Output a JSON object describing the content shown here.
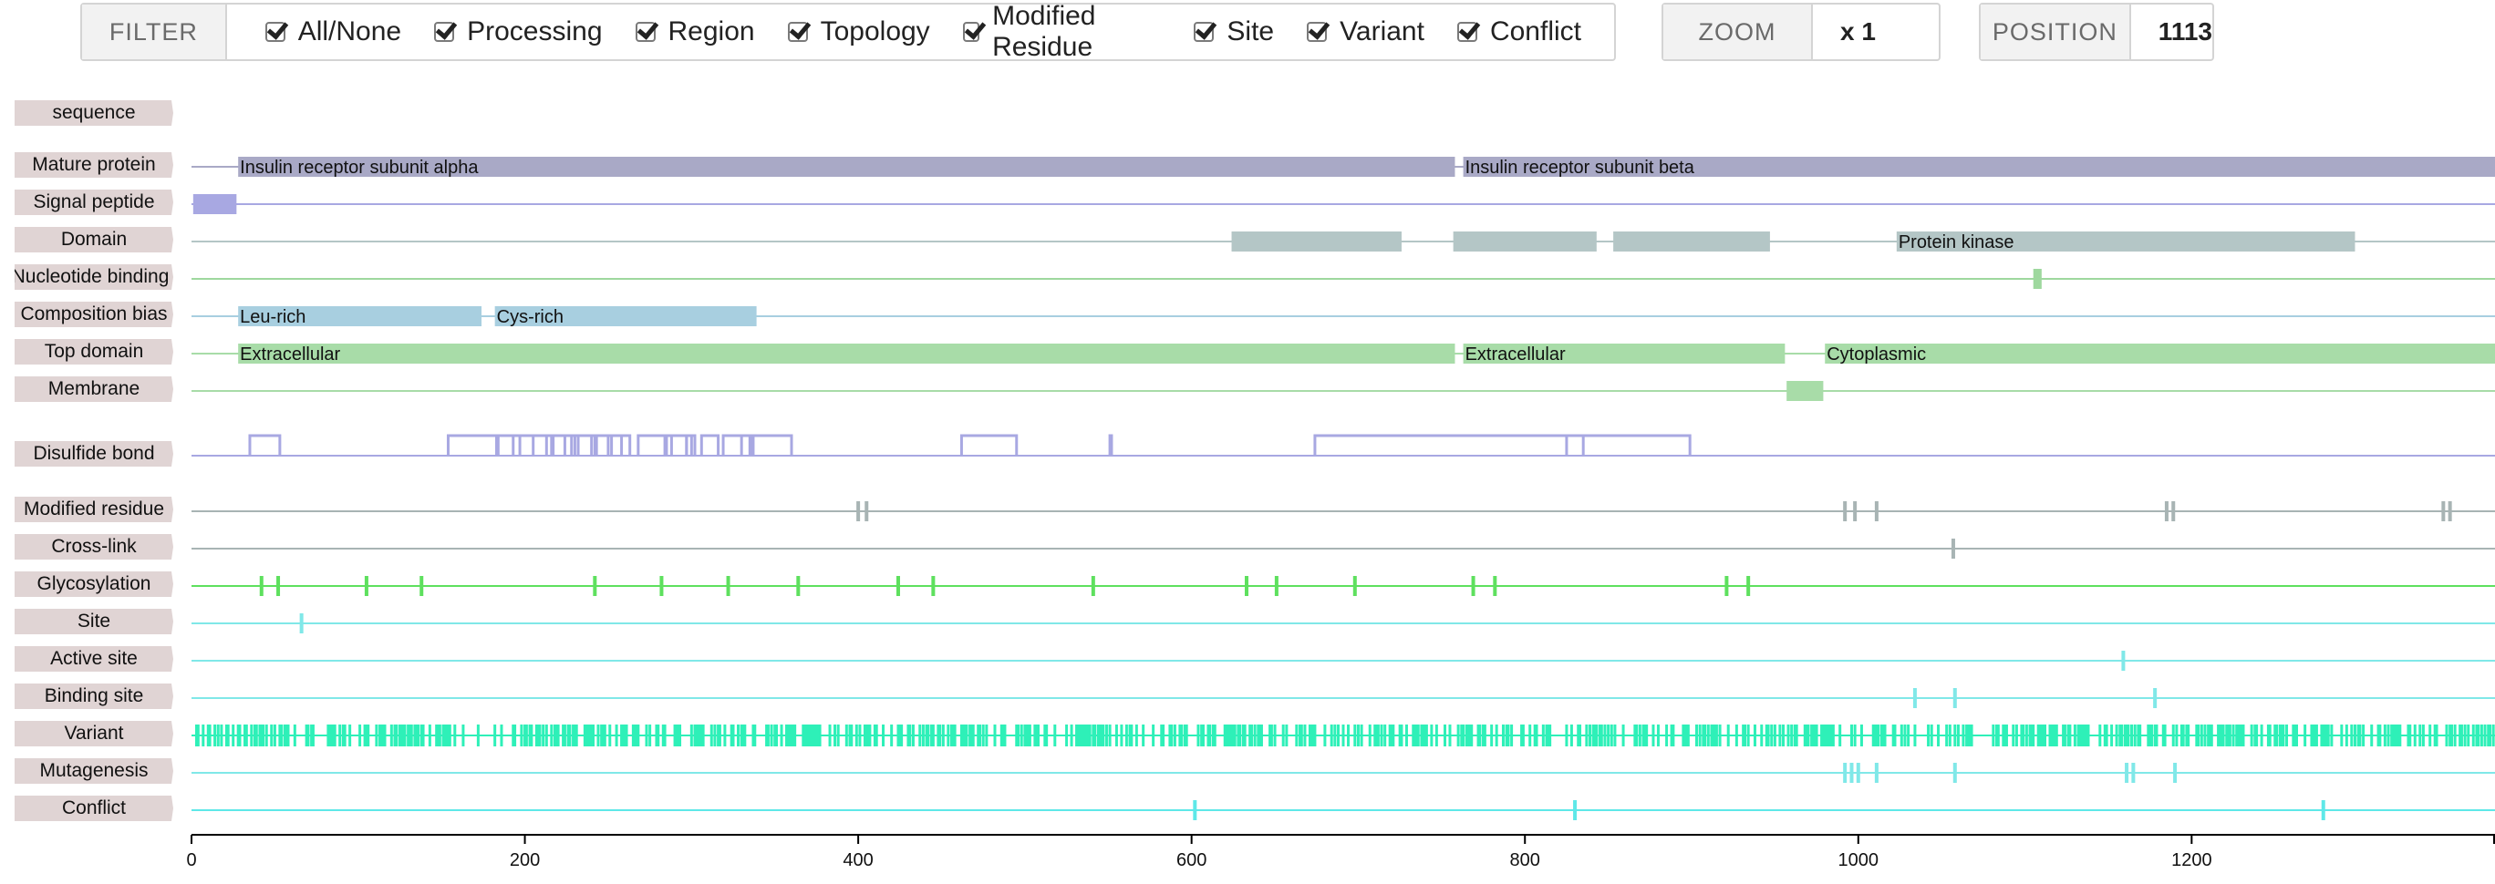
{
  "filter": {
    "title": "FILTER",
    "items": [
      {
        "label": "All/None",
        "checked": true
      },
      {
        "label": "Processing",
        "checked": true
      },
      {
        "label": "Region",
        "checked": true
      },
      {
        "label": "Topology",
        "checked": true
      },
      {
        "label": "Modified Residue",
        "checked": true
      },
      {
        "label": "Site",
        "checked": true
      },
      {
        "label": "Variant",
        "checked": true
      },
      {
        "label": "Conflict",
        "checked": true
      }
    ]
  },
  "zoom": {
    "title": "ZOOM",
    "value": "x 1"
  },
  "position": {
    "title": "POSITION",
    "value": "1113"
  },
  "axis": {
    "min": 0,
    "max": 1382,
    "ticks": [
      0,
      200,
      400,
      600,
      800,
      1000,
      1200
    ]
  },
  "colors": {
    "label_bg": "#e0d4d4",
    "processing": "#a9a9c6",
    "signal": "#a8a8e2",
    "domain": "#b4c6c6",
    "nucleotide": "#9ed89e",
    "region": "#a8cfe0",
    "topology": "#a8dca8",
    "disulfide": "#a8a8e2",
    "modified": "#a8b4b4",
    "glyco": "#5ee05e",
    "site": "#80e8e8",
    "variant": "#2ef0b8",
    "conflict": "#5ee8e8"
  },
  "tracks": [
    {
      "label": "sequence",
      "kind": "label",
      "features": []
    },
    {
      "label": "Mature protein",
      "kind": "bars",
      "color": "processing",
      "features": [
        {
          "start": 28,
          "end": 758,
          "text": "Insulin receptor subunit alpha"
        },
        {
          "start": 763,
          "end": 1382,
          "text": "Insulin receptor subunit beta"
        }
      ]
    },
    {
      "label": "Signal peptide",
      "kind": "bars",
      "color": "signal",
      "features": [
        {
          "start": 1,
          "end": 27,
          "text": ""
        }
      ]
    },
    {
      "label": "Domain",
      "kind": "bars",
      "color": "domain",
      "features": [
        {
          "start": 624,
          "end": 726,
          "text": ""
        },
        {
          "start": 757,
          "end": 843,
          "text": ""
        },
        {
          "start": 853,
          "end": 947,
          "text": ""
        },
        {
          "start": 1023,
          "end": 1298,
          "text": "Protein kinase"
        }
      ]
    },
    {
      "label": "Nucleotide binding",
      "kind": "bars",
      "color": "nucleotide",
      "features": [
        {
          "start": 1105,
          "end": 1110,
          "text": ""
        }
      ]
    },
    {
      "label": "Composition bias",
      "kind": "bars",
      "color": "region",
      "features": [
        {
          "start": 28,
          "end": 174,
          "text": "Leu-rich"
        },
        {
          "start": 182,
          "end": 339,
          "text": "Cys-rich"
        }
      ]
    },
    {
      "label": "Top domain",
      "kind": "bars",
      "color": "topology",
      "features": [
        {
          "start": 28,
          "end": 758,
          "text": "Extracellular"
        },
        {
          "start": 763,
          "end": 956,
          "text": "Extracellular"
        },
        {
          "start": 980,
          "end": 1382,
          "text": "Cytoplasmic"
        }
      ]
    },
    {
      "label": "Membrane",
      "kind": "bars",
      "color": "topology",
      "features": [
        {
          "start": 957,
          "end": 979,
          "text": ""
        }
      ]
    },
    {
      "label": "Disulfide bond",
      "kind": "bonds",
      "color": "disulfide",
      "features": [
        [
          35,
          53
        ],
        [
          154,
          183
        ],
        [
          184,
          197
        ],
        [
          193,
          216
        ],
        [
          205,
          213
        ],
        [
          217,
          228
        ],
        [
          224,
          232
        ],
        [
          230,
          242
        ],
        [
          240,
          252
        ],
        [
          243,
          258
        ],
        [
          250,
          263
        ],
        [
          268,
          285
        ],
        [
          284,
          297
        ],
        [
          288,
          302
        ],
        [
          297,
          300
        ],
        [
          306,
          316
        ],
        [
          319,
          335
        ],
        [
          330,
          337
        ],
        [
          336,
          360
        ],
        [
          462,
          495
        ],
        [
          551,
          552
        ],
        [
          674,
          899
        ],
        [
          825,
          835
        ]
      ]
    },
    {
      "label": "Modified residue",
      "kind": "ticks",
      "color": "modified",
      "features": [
        400,
        405,
        992,
        998,
        1011,
        1185,
        1189,
        1351,
        1355
      ]
    },
    {
      "label": "Cross-link",
      "kind": "ticks",
      "color": "modified",
      "features": [
        1057
      ]
    },
    {
      "label": "Glycosylation",
      "kind": "ticks",
      "color": "glyco",
      "features": [
        42,
        52,
        105,
        138,
        242,
        282,
        322,
        364,
        424,
        445,
        541,
        633,
        651,
        698,
        769,
        782,
        921,
        934
      ]
    },
    {
      "label": "Site",
      "kind": "ticks",
      "color": "site",
      "features": [
        66
      ]
    },
    {
      "label": "Active site",
      "kind": "ticks",
      "color": "site",
      "features": [
        1159
      ]
    },
    {
      "label": "Binding site",
      "kind": "ticks",
      "color": "site",
      "features": [
        1034,
        1058,
        1178
      ]
    },
    {
      "label": "Variant",
      "kind": "variant",
      "color": "variant",
      "features": []
    },
    {
      "label": "Mutagenesis",
      "kind": "ticks",
      "color": "site",
      "features": [
        992,
        996,
        1000,
        1011,
        1058,
        1161,
        1165,
        1190
      ]
    },
    {
      "label": "Conflict",
      "kind": "ticks",
      "color": "conflict",
      "features": [
        602,
        830,
        1279
      ]
    }
  ]
}
